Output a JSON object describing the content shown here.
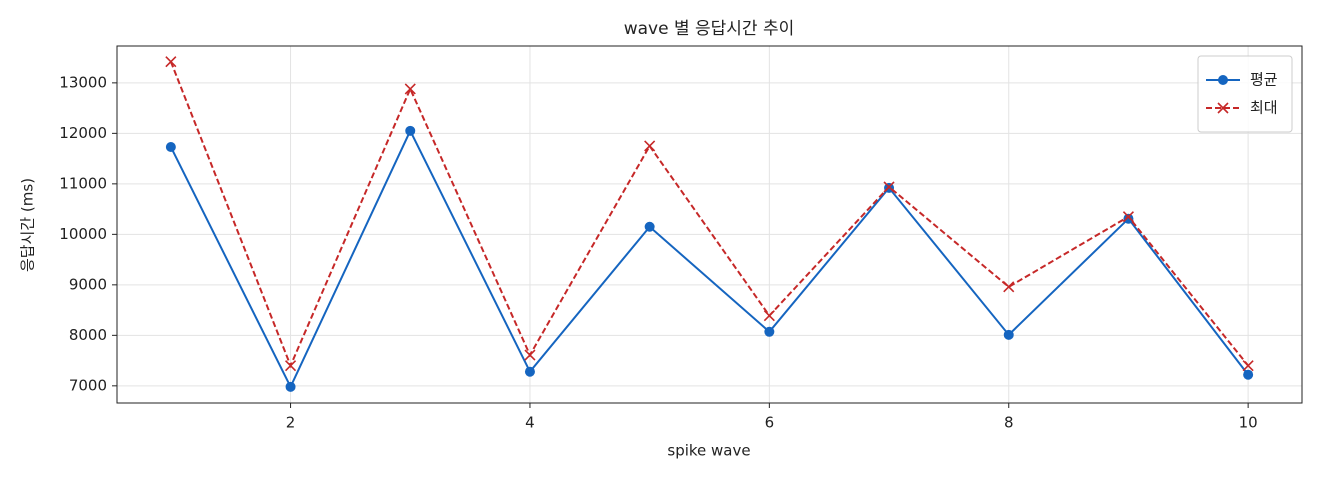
{
  "chart_data": {
    "type": "line",
    "title": "wave 별 응답시간 추이",
    "xlabel": "spike wave",
    "ylabel": "응답시간 (ms)",
    "x": [
      1,
      2,
      3,
      4,
      5,
      6,
      7,
      8,
      9,
      10
    ],
    "series": [
      {
        "name": "평균",
        "color": "#1565c0",
        "marker": "o",
        "dash": "solid",
        "values": [
          11730,
          6980,
          12050,
          7280,
          10150,
          8070,
          10920,
          8010,
          10310,
          7220
        ]
      },
      {
        "name": "최대",
        "color": "#c62828",
        "marker": "x",
        "dash": "dashed",
        "values": [
          13420,
          7400,
          12880,
          7610,
          11750,
          8390,
          10940,
          8960,
          10350,
          7400
        ]
      }
    ],
    "xlim": [
      0.55,
      10.45
    ],
    "ylim": [
      6660,
      13730
    ],
    "xticks": [
      2,
      4,
      6,
      8,
      10
    ],
    "yticks": [
      7000,
      8000,
      9000,
      10000,
      11000,
      12000,
      13000
    ],
    "grid": true,
    "legend": "upper right"
  }
}
